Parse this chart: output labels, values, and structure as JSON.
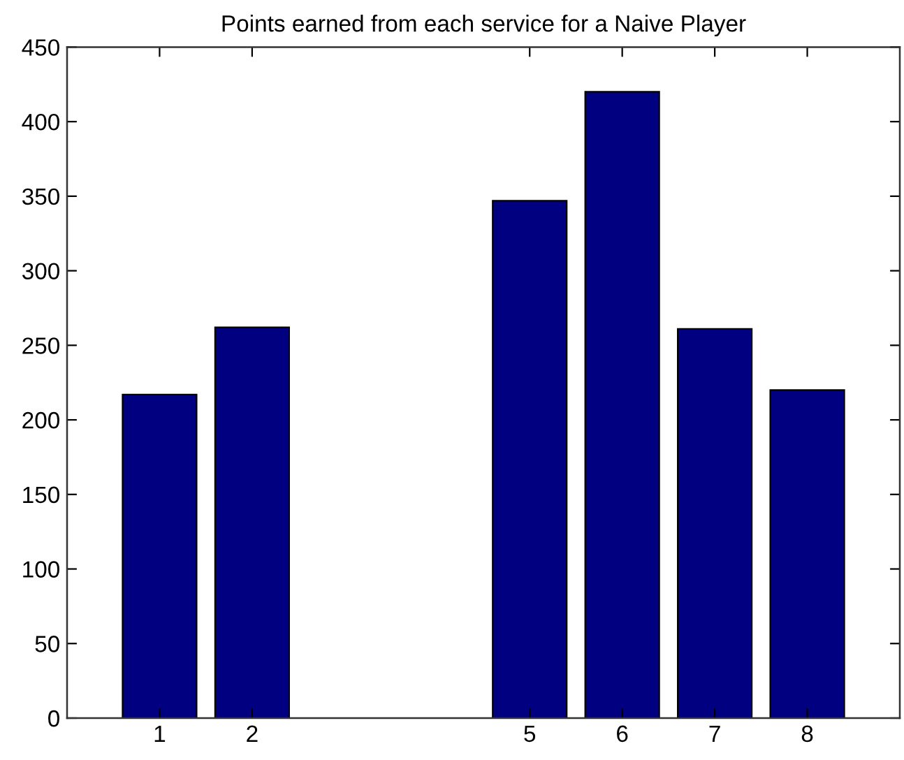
{
  "chart_data": {
    "type": "bar",
    "title": "Points earned from each service for a Naive Player",
    "x": [
      1,
      2,
      5,
      6,
      7,
      8
    ],
    "values": [
      217,
      262,
      347,
      420,
      261,
      220
    ],
    "color": "#000080",
    "xlim": [
      0,
      9
    ],
    "xticks": [
      1,
      2,
      5,
      6,
      7,
      8
    ],
    "ylim": [
      0,
      450
    ],
    "yticks": [
      0,
      50,
      100,
      150,
      200,
      250,
      300,
      350,
      400,
      450
    ],
    "grid": false
  }
}
